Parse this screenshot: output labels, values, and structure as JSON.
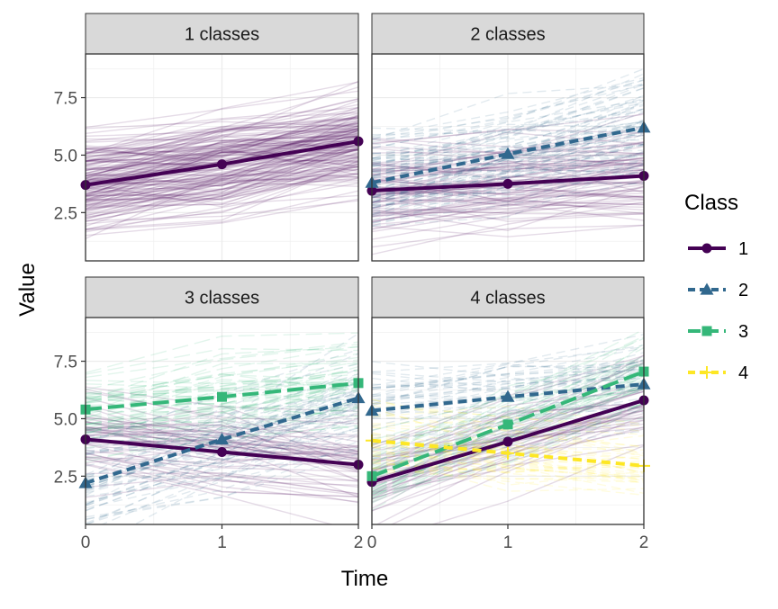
{
  "chart_data": {
    "type": "line",
    "xlabel": "Time",
    "ylabel": "Value",
    "x": [
      0,
      1,
      2
    ],
    "x_ticks": [
      "0",
      "1",
      "2"
    ],
    "y_ticks": [
      "2.5",
      "5.0",
      "7.5"
    ],
    "xlim": [
      0,
      2
    ],
    "ylim": [
      0.4,
      9.4
    ],
    "grid": true,
    "legend": {
      "title": "Class",
      "position": "right",
      "entries": [
        {
          "label": "1",
          "color": "#440154",
          "marker": "circle",
          "dash": "solid"
        },
        {
          "label": "2",
          "color": "#31688E",
          "marker": "triangle",
          "dash": "dashed"
        },
        {
          "label": "3",
          "color": "#35B779",
          "marker": "square",
          "dash": "longdash"
        },
        {
          "label": "4",
          "color": "#FDE725",
          "marker": "plus",
          "dash": "dashed"
        }
      ]
    },
    "panels": [
      {
        "title": "1 classes",
        "series": [
          {
            "name": "1",
            "values": [
              3.7,
              4.6,
              5.6
            ]
          }
        ]
      },
      {
        "title": "2 classes",
        "series": [
          {
            "name": "1",
            "values": [
              3.45,
              3.75,
              4.1
            ]
          },
          {
            "name": "2",
            "values": [
              3.8,
              5.05,
              6.2
            ]
          }
        ]
      },
      {
        "title": "3 classes",
        "series": [
          {
            "name": "1",
            "values": [
              4.1,
              3.55,
              3.0
            ]
          },
          {
            "name": "2",
            "values": [
              2.2,
              4.1,
              5.9
            ]
          },
          {
            "name": "3",
            "values": [
              5.4,
              5.95,
              6.55
            ]
          }
        ]
      },
      {
        "title": "4 classes",
        "series": [
          {
            "name": "1",
            "values": [
              2.25,
              4.0,
              5.8
            ]
          },
          {
            "name": "2",
            "values": [
              5.35,
              5.95,
              6.5
            ]
          },
          {
            "name": "3",
            "values": [
              2.5,
              4.75,
              7.05
            ]
          },
          {
            "name": "4",
            "values": [
              4.05,
              3.5,
              2.95
            ]
          }
        ]
      }
    ]
  }
}
